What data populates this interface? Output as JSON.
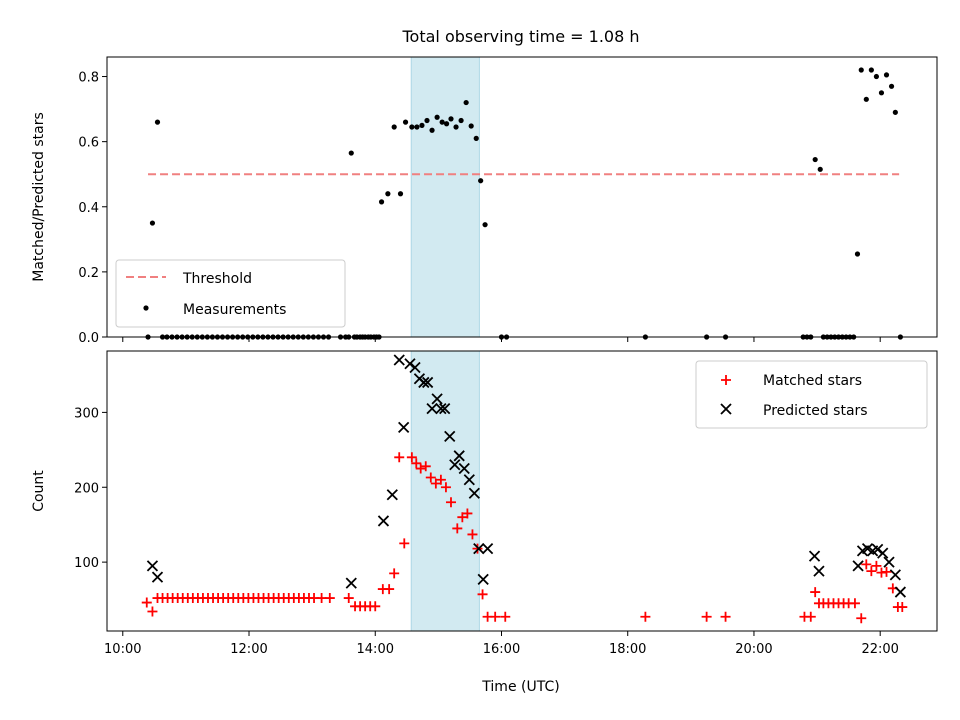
{
  "chart_data": {
    "title": "Total observing time = 1.08 h",
    "shared_x": {
      "label": "Time (UTC)",
      "unit": "hours",
      "xlim": [
        9.75,
        22.9
      ],
      "ticks": [
        10,
        12,
        14,
        16,
        18,
        20,
        22
      ],
      "tick_labels": [
        "10:00",
        "12:00",
        "14:00",
        "16:00",
        "18:00",
        "20:00",
        "22:00"
      ]
    },
    "highlight_span": {
      "start": 14.57,
      "end": 15.65,
      "color": "#add8e6"
    },
    "panels": [
      {
        "type": "scatter",
        "ylabel": "Matched/Predicted stars",
        "ylim": [
          0,
          0.86
        ],
        "yticks": [
          0.0,
          0.2,
          0.4,
          0.6,
          0.8
        ],
        "ytick_labels": [
          "0.0",
          "0.2",
          "0.4",
          "0.6",
          "0.8"
        ],
        "threshold": {
          "name": "Threshold",
          "value": 0.5,
          "x_start": 10.4,
          "x_end": 22.3,
          "color": "#f08080"
        },
        "series": [
          {
            "name": "Measurements",
            "color": "#000000",
            "marker": "dot",
            "x": [
              10.4,
              10.47,
              10.55,
              10.63,
              10.7,
              10.78,
              10.86,
              10.94,
              11.02,
              11.1,
              11.18,
              11.26,
              11.34,
              11.42,
              11.5,
              11.58,
              11.66,
              11.74,
              11.82,
              11.9,
              11.98,
              12.06,
              12.14,
              12.22,
              12.3,
              12.38,
              12.46,
              12.54,
              12.62,
              12.7,
              12.78,
              12.86,
              12.94,
              13.02,
              13.1,
              13.18,
              13.26,
              13.45,
              13.53,
              13.58,
              13.62,
              13.67,
              13.71,
              13.76,
              13.8,
              13.84,
              13.89,
              13.93,
              13.98,
              14.02,
              14.06,
              14.1,
              14.2,
              14.3,
              14.4,
              14.48,
              14.58,
              14.66,
              14.74,
              14.82,
              14.9,
              14.98,
              15.06,
              15.13,
              15.2,
              15.28,
              15.36,
              15.44,
              15.52,
              15.6,
              15.67,
              15.74,
              16.0,
              16.08,
              18.28,
              19.25,
              19.55,
              20.78,
              20.84,
              20.9,
              20.97,
              21.05,
              21.1,
              21.16,
              21.22,
              21.28,
              21.34,
              21.4,
              21.46,
              21.52,
              21.58,
              21.64,
              21.7,
              21.78,
              21.86,
              21.94,
              22.02,
              22.1,
              22.18,
              22.24,
              22.32
            ],
            "y": [
              0.0,
              0.35,
              0.66,
              0.0,
              0.0,
              0.0,
              0.0,
              0.0,
              0.0,
              0.0,
              0.0,
              0.0,
              0.0,
              0.0,
              0.0,
              0.0,
              0.0,
              0.0,
              0.0,
              0.0,
              0.0,
              0.0,
              0.0,
              0.0,
              0.0,
              0.0,
              0.0,
              0.0,
              0.0,
              0.0,
              0.0,
              0.0,
              0.0,
              0.0,
              0.0,
              0.0,
              0.0,
              0.0,
              0.0,
              0.0,
              0.565,
              0.0,
              0.0,
              0.0,
              0.0,
              0.0,
              0.0,
              0.0,
              0.0,
              0.0,
              0.0,
              0.415,
              0.44,
              0.645,
              0.44,
              0.66,
              0.645,
              0.645,
              0.65,
              0.665,
              0.635,
              0.675,
              0.66,
              0.655,
              0.67,
              0.645,
              0.665,
              0.72,
              0.648,
              0.61,
              0.48,
              0.345,
              0.0,
              0.0,
              0.0,
              0.0,
              0.0,
              0.0,
              0.0,
              0.0,
              0.545,
              0.515,
              0.0,
              0.0,
              0.0,
              0.0,
              0.0,
              0.0,
              0.0,
              0.0,
              0.0,
              0.255,
              0.82,
              0.73,
              0.82,
              0.8,
              0.75,
              0.805,
              0.77,
              0.69,
              0.0
            ]
          }
        ],
        "legend": {
          "position": "bottom-left",
          "entries": [
            "Threshold",
            "Measurements"
          ]
        }
      },
      {
        "type": "scatter",
        "ylabel": "Count",
        "ylim": [
          8,
          382
        ],
        "yticks": [
          100,
          200,
          300
        ],
        "ytick_labels": [
          "100",
          "200",
          "300"
        ],
        "series": [
          {
            "name": "Matched stars",
            "color": "#ff0000",
            "marker": "plus",
            "x": [
              10.38,
              10.47,
              10.55,
              10.63,
              10.71,
              10.79,
              10.87,
              10.95,
              11.03,
              11.11,
              11.19,
              11.27,
              11.35,
              11.43,
              11.51,
              11.59,
              11.67,
              11.75,
              11.83,
              11.91,
              11.99,
              12.07,
              12.15,
              12.23,
              12.31,
              12.39,
              12.47,
              12.55,
              12.63,
              12.71,
              12.79,
              12.87,
              12.95,
              13.03,
              13.15,
              13.28,
              13.58,
              13.68,
              13.76,
              13.84,
              13.92,
              14.0,
              14.12,
              14.22,
              14.3,
              14.38,
              14.46,
              14.58,
              14.65,
              14.72,
              14.8,
              14.88,
              14.96,
              15.04,
              15.12,
              15.2,
              15.3,
              15.38,
              15.46,
              15.54,
              15.62,
              15.7,
              15.78,
              15.9,
              16.06,
              18.28,
              19.25,
              19.55,
              20.8,
              20.9,
              20.97,
              21.03,
              21.1,
              21.18,
              21.26,
              21.34,
              21.42,
              21.5,
              21.6,
              21.7,
              21.78,
              21.86,
              21.94,
              22.02,
              22.1,
              22.2,
              22.28,
              22.35
            ],
            "y": [
              46,
              34,
              52,
              52,
              52,
              52,
              52,
              52,
              52,
              52,
              52,
              52,
              52,
              52,
              52,
              52,
              52,
              52,
              52,
              52,
              52,
              52,
              52,
              52,
              52,
              52,
              52,
              52,
              52,
              52,
              52,
              52,
              52,
              52,
              52,
              52,
              52,
              41,
              41,
              41,
              41,
              41,
              64,
              64,
              85,
              240,
              125,
              240,
              232,
              225,
              228,
              213,
              205,
              210,
              200,
              180,
              145,
              160,
              165,
              137,
              118,
              57,
              27,
              27,
              27,
              27,
              27,
              27,
              27,
              27,
              60,
              45,
              45,
              45,
              45,
              45,
              45,
              45,
              45,
              25,
              97,
              88,
              95,
              86,
              87,
              65,
              40,
              40
            ]
          },
          {
            "name": "Predicted stars",
            "color": "#000000",
            "marker": "x",
            "x": [
              10.47,
              10.55,
              13.62,
              14.13,
              14.27,
              14.38,
              14.45,
              14.55,
              14.63,
              14.7,
              14.77,
              14.83,
              14.9,
              14.98,
              15.04,
              15.1,
              15.18,
              15.26,
              15.33,
              15.41,
              15.49,
              15.57,
              15.64,
              15.71,
              15.78,
              20.96,
              21.03,
              21.65,
              21.72,
              21.8,
              21.88,
              21.96,
              22.04,
              22.14,
              22.24,
              22.32
            ],
            "y": [
              95,
              80,
              72,
              155,
              190,
              370,
              280,
              365,
              360,
              345,
              340,
              340,
              305,
              318,
              305,
              305,
              268,
              230,
              242,
              225,
              210,
              192,
              118,
              77,
              118,
              108,
              88,
              95,
              115,
              118,
              115,
              117,
              112,
              100,
              83,
              60
            ]
          }
        ],
        "legend": {
          "position": "top-right",
          "entries": [
            "Matched stars",
            "Predicted stars"
          ]
        }
      }
    ]
  }
}
